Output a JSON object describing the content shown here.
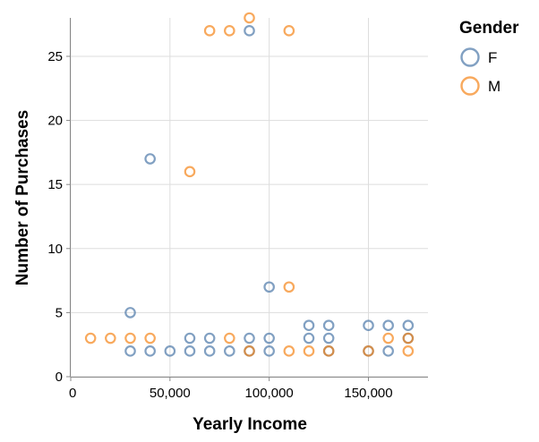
{
  "chart_data": {
    "type": "scatter",
    "xlabel": "Yearly Income",
    "ylabel": "Number of Purchases",
    "xlim": [
      0,
      180000
    ],
    "ylim": [
      0,
      28
    ],
    "x_ticks": [
      0,
      50000,
      100000,
      150000
    ],
    "x_tick_labels": [
      "0",
      "50,000",
      "100,000",
      "150,000"
    ],
    "y_ticks": [
      0,
      5,
      10,
      15,
      20,
      25
    ],
    "y_tick_labels": [
      "0",
      "5",
      "10",
      "15",
      "20",
      "25"
    ],
    "grid": true,
    "legend": {
      "title": "Gender",
      "position": "top-right"
    },
    "series": [
      {
        "name": "F",
        "color": "#4c78a8",
        "points": [
          [
            30000,
            5
          ],
          [
            30000,
            2
          ],
          [
            40000,
            17
          ],
          [
            40000,
            2
          ],
          [
            50000,
            2
          ],
          [
            60000,
            3
          ],
          [
            60000,
            2
          ],
          [
            70000,
            3
          ],
          [
            70000,
            2
          ],
          [
            80000,
            2
          ],
          [
            90000,
            27
          ],
          [
            90000,
            3
          ],
          [
            90000,
            2
          ],
          [
            100000,
            7
          ],
          [
            100000,
            3
          ],
          [
            100000,
            2
          ],
          [
            120000,
            4
          ],
          [
            120000,
            3
          ],
          [
            130000,
            4
          ],
          [
            130000,
            3
          ],
          [
            130000,
            2
          ],
          [
            150000,
            4
          ],
          [
            150000,
            2
          ],
          [
            160000,
            4
          ],
          [
            160000,
            2
          ],
          [
            170000,
            4
          ],
          [
            170000,
            3
          ]
        ]
      },
      {
        "name": "M",
        "color": "#f58518",
        "points": [
          [
            10000,
            3
          ],
          [
            20000,
            3
          ],
          [
            30000,
            3
          ],
          [
            40000,
            3
          ],
          [
            60000,
            16
          ],
          [
            70000,
            27
          ],
          [
            80000,
            27
          ],
          [
            80000,
            3
          ],
          [
            90000,
            28
          ],
          [
            90000,
            2
          ],
          [
            110000,
            27
          ],
          [
            110000,
            7
          ],
          [
            110000,
            2
          ],
          [
            120000,
            2
          ],
          [
            130000,
            2
          ],
          [
            150000,
            2
          ],
          [
            160000,
            3
          ],
          [
            170000,
            3
          ],
          [
            170000,
            2
          ]
        ]
      }
    ]
  }
}
